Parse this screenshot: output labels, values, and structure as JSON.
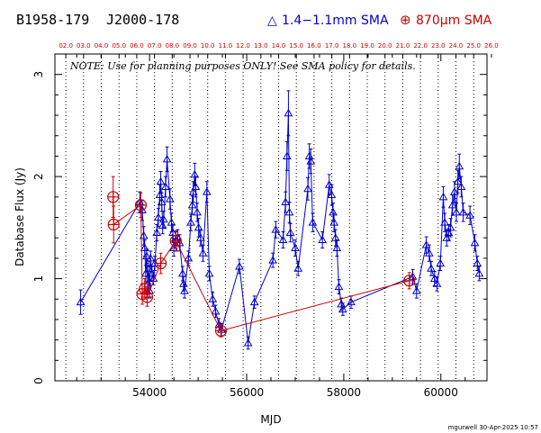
{
  "header": {
    "source_b1950": "B1958-179",
    "source_j2000": "J2000-178",
    "legend_blue_symbol": "△",
    "legend_blue_label": "1.4−1.1mm SMA",
    "legend_red_symbol": "⊕",
    "legend_red_label": "870μm SMA"
  },
  "note": "NOTE: Use for planning purposes ONLY!  See SMA policy for details.",
  "footer": {
    "credit": "mgurwell 30-Apr-2025 10:57"
  },
  "colors": {
    "blue": "#0000cc",
    "red": "#cc0000",
    "axis": "#000000"
  },
  "chart_data": {
    "type": "scatter",
    "xlabel": "MJD",
    "ylabel": "Database Flux (Jy)",
    "xlim": [
      52050,
      60950
    ],
    "ylim": [
      0,
      3.2
    ],
    "x_ticks": [
      54000,
      56000,
      58000,
      60000
    ],
    "x_tick_labels": [
      "54000",
      "56000",
      "58000",
      "60000"
    ],
    "y_ticks": [
      0,
      1,
      2,
      3
    ],
    "y_tick_labels": [
      "0",
      "1",
      "2",
      "3"
    ],
    "top_year_ticks": [
      {
        "label": "02.0",
        "mjd": 52275
      },
      {
        "label": "03.0",
        "mjd": 52640
      },
      {
        "label": "04.0",
        "mjd": 53005
      },
      {
        "label": "05.0",
        "mjd": 53371
      },
      {
        "label": "06.0",
        "mjd": 53736
      },
      {
        "label": "07.0",
        "mjd": 54101
      },
      {
        "label": "08.0",
        "mjd": 54466
      },
      {
        "label": "09.0",
        "mjd": 54832
      },
      {
        "label": "10.0",
        "mjd": 55197
      },
      {
        "label": "11.0",
        "mjd": 55562
      },
      {
        "label": "12.0",
        "mjd": 55927
      },
      {
        "label": "13.0",
        "mjd": 56293
      },
      {
        "label": "14.0",
        "mjd": 56658
      },
      {
        "label": "15.0",
        "mjd": 57023
      },
      {
        "label": "16.0",
        "mjd": 57388
      },
      {
        "label": "17.0",
        "mjd": 57754
      },
      {
        "label": "18.0",
        "mjd": 58119
      },
      {
        "label": "19.0",
        "mjd": 58484
      },
      {
        "label": "20.0",
        "mjd": 58849
      },
      {
        "label": "21.0",
        "mjd": 59215
      },
      {
        "label": "22.0",
        "mjd": 59580
      },
      {
        "label": "23.0",
        "mjd": 59945
      },
      {
        "label": "24.0",
        "mjd": 60310
      },
      {
        "label": "25.0",
        "mjd": 60676
      },
      {
        "label": "26.0",
        "mjd": 61041
      }
    ],
    "grid": "dotted vertical lines at year boundaries",
    "series": [
      {
        "name": "1.4−1.1mm SMA",
        "color": "#0000cc",
        "marker": "triangle",
        "points": [
          {
            "x": 52580,
            "y": 0.77,
            "err": 0.12
          },
          {
            "x": 53800,
            "y": 1.75,
            "err": 0.1
          },
          {
            "x": 53850,
            "y": 1.67,
            "err": 0.1
          },
          {
            "x": 53880,
            "y": 1.42,
            "err": 0.09
          },
          {
            "x": 53900,
            "y": 1.3,
            "err": 0.08
          },
          {
            "x": 53920,
            "y": 1.05,
            "err": 0.08
          },
          {
            "x": 53940,
            "y": 1.22,
            "err": 0.07
          },
          {
            "x": 53960,
            "y": 0.95,
            "err": 0.07
          },
          {
            "x": 53980,
            "y": 1.1,
            "err": 0.07
          },
          {
            "x": 54000,
            "y": 0.88,
            "err": 0.07
          },
          {
            "x": 54020,
            "y": 1.2,
            "err": 0.07
          },
          {
            "x": 54050,
            "y": 1.05,
            "err": 0.07
          },
          {
            "x": 54080,
            "y": 1.0,
            "err": 0.06
          },
          {
            "x": 54110,
            "y": 1.15,
            "err": 0.07
          },
          {
            "x": 54150,
            "y": 1.45,
            "err": 0.08
          },
          {
            "x": 54180,
            "y": 1.6,
            "err": 0.09
          },
          {
            "x": 54210,
            "y": 1.82,
            "err": 0.1
          },
          {
            "x": 54230,
            "y": 1.95,
            "err": 0.1
          },
          {
            "x": 54250,
            "y": 1.75,
            "err": 0.09
          },
          {
            "x": 54270,
            "y": 1.52,
            "err": 0.08
          },
          {
            "x": 54290,
            "y": 1.58,
            "err": 0.08
          },
          {
            "x": 54330,
            "y": 1.9,
            "err": 0.1
          },
          {
            "x": 54360,
            "y": 2.17,
            "err": 0.12
          },
          {
            "x": 54420,
            "y": 1.78,
            "err": 0.1
          },
          {
            "x": 54450,
            "y": 1.55,
            "err": 0.09
          },
          {
            "x": 54480,
            "y": 1.45,
            "err": 0.08
          },
          {
            "x": 54500,
            "y": 1.3,
            "err": 0.08
          },
          {
            "x": 54540,
            "y": 1.38,
            "err": 0.08
          },
          {
            "x": 54580,
            "y": 1.4,
            "err": 0.08
          },
          {
            "x": 54620,
            "y": 1.35,
            "err": 0.08
          },
          {
            "x": 54680,
            "y": 1.05,
            "err": 0.07
          },
          {
            "x": 54700,
            "y": 0.95,
            "err": 0.07
          },
          {
            "x": 54720,
            "y": 0.88,
            "err": 0.07
          },
          {
            "x": 54800,
            "y": 1.2,
            "err": 0.07
          },
          {
            "x": 54850,
            "y": 1.55,
            "err": 0.08
          },
          {
            "x": 54880,
            "y": 1.72,
            "err": 0.09
          },
          {
            "x": 54900,
            "y": 1.85,
            "err": 0.1
          },
          {
            "x": 54930,
            "y": 2.02,
            "err": 0.11
          },
          {
            "x": 54950,
            "y": 1.9,
            "err": 0.1
          },
          {
            "x": 54980,
            "y": 1.65,
            "err": 0.09
          },
          {
            "x": 55010,
            "y": 1.5,
            "err": 0.09
          },
          {
            "x": 55050,
            "y": 1.4,
            "err": 0.08
          },
          {
            "x": 55100,
            "y": 1.25,
            "err": 0.08
          },
          {
            "x": 55180,
            "y": 1.85,
            "err": 0.1
          },
          {
            "x": 55230,
            "y": 1.05,
            "err": 0.07
          },
          {
            "x": 55300,
            "y": 0.8,
            "err": 0.07
          },
          {
            "x": 55360,
            "y": 0.68,
            "err": 0.06
          },
          {
            "x": 55430,
            "y": 0.55,
            "err": 0.06
          },
          {
            "x": 55480,
            "y": 0.5,
            "err": 0.06
          },
          {
            "x": 55850,
            "y": 1.12,
            "err": 0.07
          },
          {
            "x": 56030,
            "y": 0.37,
            "err": 0.06
          },
          {
            "x": 56160,
            "y": 0.77,
            "err": 0.06
          },
          {
            "x": 56540,
            "y": 1.18,
            "err": 0.07
          },
          {
            "x": 56600,
            "y": 1.48,
            "err": 0.08
          },
          {
            "x": 56750,
            "y": 1.38,
            "err": 0.08
          },
          {
            "x": 56800,
            "y": 1.75,
            "err": 0.1
          },
          {
            "x": 56830,
            "y": 2.2,
            "err": 0.14
          },
          {
            "x": 56860,
            "y": 2.62,
            "err": 0.22
          },
          {
            "x": 56880,
            "y": 1.65,
            "err": 0.1
          },
          {
            "x": 56900,
            "y": 1.45,
            "err": 0.09
          },
          {
            "x": 57000,
            "y": 1.3,
            "err": 0.08
          },
          {
            "x": 57060,
            "y": 1.1,
            "err": 0.07
          },
          {
            "x": 57260,
            "y": 1.88,
            "err": 0.11
          },
          {
            "x": 57290,
            "y": 2.2,
            "err": 0.12
          },
          {
            "x": 57320,
            "y": 2.15,
            "err": 0.12
          },
          {
            "x": 57360,
            "y": 1.55,
            "err": 0.09
          },
          {
            "x": 57560,
            "y": 1.38,
            "err": 0.08
          },
          {
            "x": 57700,
            "y": 1.92,
            "err": 0.1
          },
          {
            "x": 57750,
            "y": 1.82,
            "err": 0.1
          },
          {
            "x": 57780,
            "y": 1.65,
            "err": 0.09
          },
          {
            "x": 57800,
            "y": 1.55,
            "err": 0.09
          },
          {
            "x": 57830,
            "y": 1.4,
            "err": 0.08
          },
          {
            "x": 57860,
            "y": 1.3,
            "err": 0.08
          },
          {
            "x": 57900,
            "y": 0.92,
            "err": 0.07
          },
          {
            "x": 57950,
            "y": 0.75,
            "err": 0.06
          },
          {
            "x": 57980,
            "y": 0.7,
            "err": 0.06
          },
          {
            "x": 58150,
            "y": 0.77,
            "err": 0.06
          },
          {
            "x": 59420,
            "y": 1.02,
            "err": 0.07
          },
          {
            "x": 59500,
            "y": 0.88,
            "err": 0.07
          },
          {
            "x": 59700,
            "y": 1.33,
            "err": 0.08
          },
          {
            "x": 59760,
            "y": 1.25,
            "err": 0.08
          },
          {
            "x": 59800,
            "y": 1.1,
            "err": 0.07
          },
          {
            "x": 59870,
            "y": 1.0,
            "err": 0.07
          },
          {
            "x": 59920,
            "y": 0.95,
            "err": 0.07
          },
          {
            "x": 59990,
            "y": 1.15,
            "err": 0.07
          },
          {
            "x": 60050,
            "y": 1.8,
            "err": 0.1
          },
          {
            "x": 60080,
            "y": 1.55,
            "err": 0.09
          },
          {
            "x": 60120,
            "y": 1.4,
            "err": 0.08
          },
          {
            "x": 60160,
            "y": 1.45,
            "err": 0.08
          },
          {
            "x": 60200,
            "y": 1.5,
            "err": 0.09
          },
          {
            "x": 60240,
            "y": 1.72,
            "err": 0.1
          },
          {
            "x": 60280,
            "y": 1.85,
            "err": 0.1
          },
          {
            "x": 60320,
            "y": 1.65,
            "err": 0.09
          },
          {
            "x": 60350,
            "y": 1.95,
            "err": 0.11
          },
          {
            "x": 60380,
            "y": 2.1,
            "err": 0.12
          },
          {
            "x": 60420,
            "y": 1.9,
            "err": 0.1
          },
          {
            "x": 60460,
            "y": 1.65,
            "err": 0.09
          },
          {
            "x": 60600,
            "y": 1.62,
            "err": 0.09
          },
          {
            "x": 60700,
            "y": 1.35,
            "err": 0.08
          },
          {
            "x": 60750,
            "y": 1.15,
            "err": 0.07
          },
          {
            "x": 60790,
            "y": 1.05,
            "err": 0.07
          }
        ]
      },
      {
        "name": "870μm SMA",
        "color": "#cc0000",
        "marker": "circled-plus",
        "points": [
          {
            "x": 53250,
            "y": 1.8,
            "err": 0.2
          },
          {
            "x": 53260,
            "y": 1.53,
            "err": 0.18
          },
          {
            "x": 53820,
            "y": 1.72,
            "err": 0.12
          },
          {
            "x": 53850,
            "y": 0.85,
            "err": 0.1
          },
          {
            "x": 53900,
            "y": 0.9,
            "err": 0.1
          },
          {
            "x": 53950,
            "y": 0.82,
            "err": 0.09
          },
          {
            "x": 54230,
            "y": 1.15,
            "err": 0.1
          },
          {
            "x": 54540,
            "y": 1.37,
            "err": 0.1
          },
          {
            "x": 55470,
            "y": 0.49,
            "err": 0.06
          },
          {
            "x": 59350,
            "y": 0.98,
            "err": 0.08
          }
        ]
      }
    ]
  }
}
